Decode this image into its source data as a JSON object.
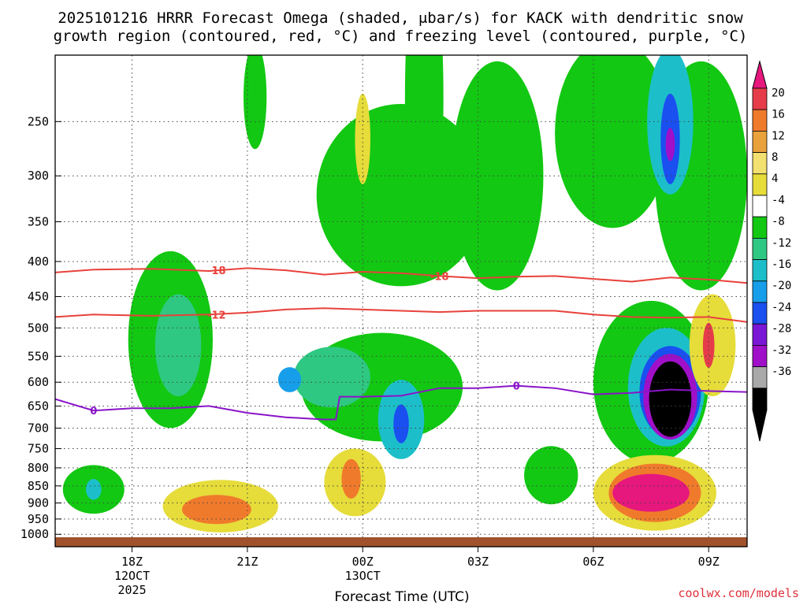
{
  "chart_data": {
    "type": "heatmap",
    "title": "2025101216 HRRR Forecast Omega (shaded, μbar/s) for KACK with dendritic snow",
    "subtitle": "growth region (contoured, red, °C) and freezing level (contoured, purple, °C)",
    "xlabel": "Forecast Time (UTC)",
    "ylabel": "",
    "x_ticks": [
      {
        "label": "18Z",
        "sub1": "12OCT",
        "sub2": "2025",
        "hour": 18
      },
      {
        "label": "21Z",
        "sub1": "",
        "sub2": "",
        "hour": 21
      },
      {
        "label": "00Z",
        "sub1": "13OCT",
        "sub2": "",
        "hour": 24
      },
      {
        "label": "03Z",
        "sub1": "",
        "sub2": "",
        "hour": 27
      },
      {
        "label": "06Z",
        "sub1": "",
        "sub2": "",
        "hour": 30
      },
      {
        "label": "09Z",
        "sub1": "",
        "sub2": "",
        "hour": 33
      }
    ],
    "xlim_hours": [
      16,
      34
    ],
    "y_ticks": [
      "250",
      "300",
      "350",
      "400",
      "450",
      "500",
      "550",
      "600",
      "650",
      "700",
      "750",
      "800",
      "850",
      "900",
      "950",
      "1000"
    ],
    "ylim_hPa": [
      200,
      1010
    ],
    "grid": true,
    "legend_position": "right",
    "colorbar": {
      "labels": [
        "20",
        "16",
        "12",
        "8",
        "4",
        "-4",
        "-8",
        "-12",
        "-16",
        "-20",
        "-24",
        "-28",
        "-32",
        "-36"
      ],
      "colors": [
        "#e63c4a",
        "#f07a2c",
        "#e9a23b",
        "#f2e070",
        "#e6dc3a",
        "#ffffff",
        "#12c812",
        "#2ec882",
        "#1cbfc9",
        "#169eea",
        "#1a4ff0",
        "#7a16d6",
        "#a010c8",
        "#a9a9a9",
        "#000000"
      ],
      "top_arrow_color": "#e6177d",
      "bottom_arrow_color": "#000000"
    },
    "contours": [
      {
        "value": "-18",
        "color": "#e8423b",
        "points": [
          [
            16,
            415
          ],
          [
            17,
            411
          ],
          [
            18.5,
            410
          ],
          [
            20,
            413
          ],
          [
            21,
            409
          ],
          [
            22,
            412
          ],
          [
            23,
            418
          ],
          [
            24,
            414
          ],
          [
            25,
            416
          ],
          [
            26,
            420
          ],
          [
            27,
            423
          ],
          [
            28,
            421
          ],
          [
            29,
            420
          ],
          [
            30,
            424
          ],
          [
            31,
            428
          ],
          [
            32,
            422
          ],
          [
            33,
            425
          ],
          [
            34,
            430
          ]
        ]
      },
      {
        "value": "-12",
        "color": "#e8423b",
        "points": [
          [
            16,
            482
          ],
          [
            17,
            478
          ],
          [
            18.5,
            480
          ],
          [
            20,
            478
          ],
          [
            21,
            475
          ],
          [
            22,
            470
          ],
          [
            23,
            468
          ],
          [
            24,
            470
          ],
          [
            25,
            472
          ],
          [
            26,
            474
          ],
          [
            27,
            472
          ],
          [
            28,
            472
          ],
          [
            29,
            472
          ],
          [
            30,
            478
          ],
          [
            31,
            482
          ],
          [
            32,
            483
          ],
          [
            33,
            482
          ],
          [
            34,
            490
          ]
        ]
      },
      {
        "value": "0",
        "color": "#8a14c8",
        "points": [
          [
            16,
            635
          ],
          [
            17,
            660
          ],
          [
            18,
            655
          ],
          [
            19,
            655
          ],
          [
            20,
            650
          ],
          [
            21,
            665
          ],
          [
            22,
            675
          ],
          [
            23,
            680
          ],
          [
            23.3,
            680
          ],
          [
            23.4,
            630
          ],
          [
            24,
            630
          ],
          [
            25,
            628
          ],
          [
            26,
            612
          ],
          [
            27,
            612
          ],
          [
            28,
            607
          ],
          [
            29,
            612
          ],
          [
            30,
            625
          ],
          [
            31,
            622
          ],
          [
            32,
            615
          ],
          [
            33,
            618
          ],
          [
            34,
            620
          ]
        ]
      }
    ],
    "contour_labels": [
      {
        "text": "-18",
        "hour": 20.2,
        "hPa": 412
      },
      {
        "text": "-18",
        "hour": 26.0,
        "hPa": 420
      },
      {
        "text": "-12",
        "hour": 20.2,
        "hPa": 478
      },
      {
        "text": "0",
        "hour": 17.0,
        "hPa": 660
      },
      {
        "text": "0",
        "hour": 28.0,
        "hPa": 607
      }
    ],
    "features": [
      {
        "name": "green-ascent-upper-left",
        "value": -6,
        "hour": 21.2,
        "hPa": 230,
        "rh": 0.3,
        "rp": 40
      },
      {
        "name": "green-ascent-upper",
        "value": -6,
        "hour": 25.0,
        "hPa": 320,
        "rh": 2.2,
        "rp": 95
      },
      {
        "name": "green-ascent-upper-2",
        "value": -6,
        "hour": 27.5,
        "hPa": 300,
        "rh": 1.2,
        "rp": 110
      },
      {
        "name": "green-ascent-upper-3",
        "value": -6,
        "hour": 25.6,
        "hPa": 230,
        "rh": 0.5,
        "rp": 110
      },
      {
        "name": "green-ascent-upper-right",
        "value": -6,
        "hour": 30.5,
        "hPa": 260,
        "rh": 1.5,
        "rp": 80
      },
      {
        "name": "green-ascent-right-col",
        "value": -6,
        "hour": 32.8,
        "hPa": 300,
        "rh": 1.2,
        "rp": 110
      },
      {
        "name": "green-ascent-mid-left",
        "value": -6,
        "hour": 19.0,
        "hPa": 520,
        "rh": 1.1,
        "rp": 150
      },
      {
        "name": "teal-mid-left",
        "value": -10,
        "hour": 19.2,
        "hPa": 530,
        "rh": 0.6,
        "rp": 90
      },
      {
        "name": "green-ascent-center",
        "value": -6,
        "hour": 24.5,
        "hPa": 610,
        "rh": 2.1,
        "rp": 110
      },
      {
        "name": "teal-center",
        "value": -10,
        "hour": 23.2,
        "hPa": 590,
        "rh": 1.0,
        "rp": 60
      },
      {
        "name": "blue-center-left",
        "value": -18,
        "hour": 22.1,
        "hPa": 595,
        "rh": 0.3,
        "rp": 25
      },
      {
        "name": "teal-center-right",
        "value": -12,
        "hour": 25.0,
        "hPa": 680,
        "rh": 0.6,
        "rp": 90
      },
      {
        "name": "blue-center-right",
        "value": -22,
        "hour": 25.0,
        "hPa": 690,
        "rh": 0.2,
        "rp": 45
      },
      {
        "name": "green-right-mid",
        "value": -6,
        "hour": 31.5,
        "hPa": 600,
        "rh": 1.5,
        "rp": 160
      },
      {
        "name": "teal-right-mid",
        "value": -12,
        "hour": 31.9,
        "hPa": 610,
        "rh": 1.0,
        "rp": 120
      },
      {
        "name": "blue-right-mid",
        "value": -20,
        "hour": 32.0,
        "hPa": 620,
        "rh": 0.8,
        "rp": 95
      },
      {
        "name": "purple-right-mid",
        "value": -30,
        "hour": 32.0,
        "hPa": 630,
        "rh": 0.7,
        "rp": 90
      },
      {
        "name": "black-right-mid",
        "value": -38,
        "hour": 32.0,
        "hPa": 635,
        "rh": 0.55,
        "rp": 80
      },
      {
        "name": "teal-upper-right",
        "value": -12,
        "hour": 32.0,
        "hPa": 250,
        "rh": 0.6,
        "rp": 60
      },
      {
        "name": "blue-upper-right",
        "value": -22,
        "hour": 32.0,
        "hPa": 265,
        "rh": 0.25,
        "rp": 40
      },
      {
        "name": "purple-upper-right",
        "value": -28,
        "hour": 32.0,
        "hPa": 270,
        "rh": 0.12,
        "rp": 15
      },
      {
        "name": "green-lower-left",
        "value": -6,
        "hour": 17.0,
        "hPa": 860,
        "rh": 0.8,
        "rp": 70
      },
      {
        "name": "teal-lower-left",
        "value": -12,
        "hour": 17.0,
        "hPa": 860,
        "rh": 0.2,
        "rp": 30
      },
      {
        "name": "green-lower-mid-right",
        "value": -6,
        "hour": 28.9,
        "hPa": 820,
        "rh": 0.7,
        "rp": 80
      },
      {
        "name": "yellow-lower-left",
        "value": 6,
        "hour": 20.3,
        "hPa": 910,
        "rh": 1.5,
        "rp": 80
      },
      {
        "name": "orange-lower-left",
        "value": 12,
        "hour": 20.2,
        "hPa": 920,
        "rh": 0.9,
        "rp": 45
      },
      {
        "name": "yellow-lower-center",
        "value": 6,
        "hour": 23.8,
        "hPa": 840,
        "rh": 0.8,
        "rp": 95
      },
      {
        "name": "orange-lower-center",
        "value": 12,
        "hour": 23.7,
        "hPa": 830,
        "rh": 0.25,
        "rp": 55
      },
      {
        "name": "yellow-lower-right",
        "value": 6,
        "hour": 31.6,
        "hPa": 870,
        "rh": 1.6,
        "rp": 110
      },
      {
        "name": "orange-lower-right",
        "value": 12,
        "hour": 31.6,
        "hPa": 870,
        "rh": 1.2,
        "rp": 85
      },
      {
        "name": "magenta-lower-right",
        "value": 22,
        "hour": 31.5,
        "hPa": 870,
        "rh": 1.0,
        "rp": 55
      },
      {
        "name": "yellow-upper-mid",
        "value": 6,
        "hour": 24.0,
        "hPa": 265,
        "rh": 0.2,
        "rp": 40
      },
      {
        "name": "yellow-right-mid",
        "value": 6,
        "hour": 33.1,
        "hPa": 530,
        "rh": 0.6,
        "rp": 90
      },
      {
        "name": "red-right-mid",
        "value": 18,
        "hour": 33.0,
        "hPa": 530,
        "rh": 0.15,
        "rp": 40
      }
    ]
  },
  "credit": "coolwx.com/models"
}
